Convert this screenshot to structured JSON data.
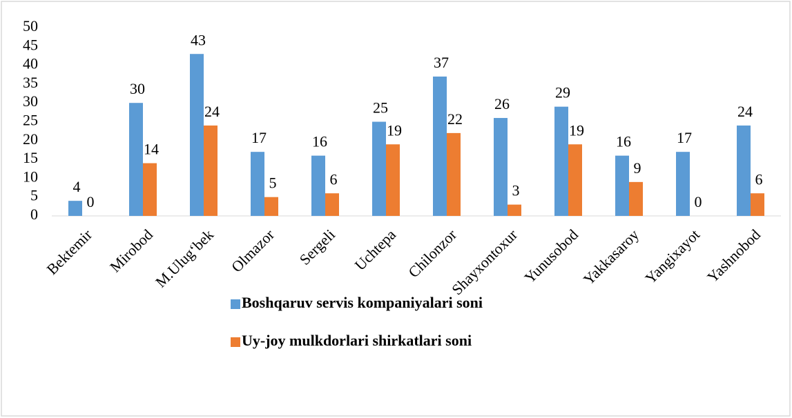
{
  "chart_data": {
    "type": "bar",
    "categories": [
      "Bektemir",
      "Mirobod",
      "M.Ulug‘bek",
      "Olmazor",
      "Sergeli",
      "Uchtepa",
      "Chilonzor",
      "Shayxontoxur",
      "Yunusobod",
      "Yakkasaroy",
      "Yangixayot",
      "Yashnobod"
    ],
    "series": [
      {
        "name": "Boshqaruv servis kompaniyalari soni",
        "color": "#5b9bd5",
        "values": [
          4,
          30,
          43,
          17,
          16,
          25,
          37,
          26,
          29,
          16,
          17,
          24
        ]
      },
      {
        "name": "Uy-joy mulkdorlari shirkatlari soni",
        "color": "#ed7d31",
        "values": [
          0,
          14,
          24,
          5,
          6,
          19,
          22,
          3,
          19,
          9,
          0,
          6
        ]
      }
    ],
    "ylim": [
      0,
      50
    ],
    "yticks": [
      0,
      5,
      10,
      15,
      20,
      25,
      30,
      35,
      40,
      45,
      50
    ],
    "grid": false,
    "legend": "bottom"
  }
}
